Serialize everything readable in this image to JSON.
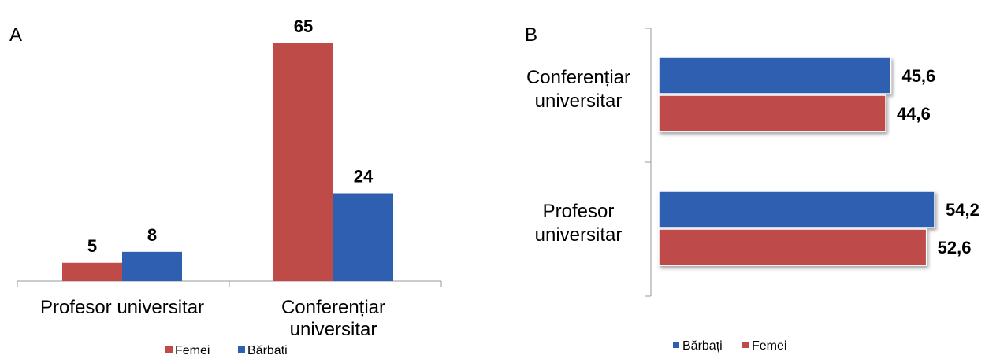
{
  "chart_data": [
    {
      "panel": "A",
      "type": "bar",
      "orientation": "vertical",
      "categories": [
        "Profesor universitar",
        "Conferențiar universitar"
      ],
      "series": [
        {
          "name": "Femei",
          "values": [
            5,
            65
          ],
          "value_labels": [
            "5",
            "65"
          ],
          "color": "#BE4B48"
        },
        {
          "name": "Bărbati",
          "values": [
            8,
            24
          ],
          "value_labels": [
            "8",
            "24"
          ],
          "color": "#2E5FB0"
        }
      ],
      "ylim": [
        0,
        65
      ],
      "legend": "bottom"
    },
    {
      "panel": "B",
      "type": "bar",
      "orientation": "horizontal",
      "categories": [
        "Conferențiar universitar",
        "Profesor universitar"
      ],
      "series": [
        {
          "name": "Bărbați",
          "values": [
            45.6,
            54.2
          ],
          "value_labels": [
            "45,6",
            "54,2"
          ],
          "color": "#2E5FB0"
        },
        {
          "name": "Femei",
          "values": [
            44.6,
            52.6
          ],
          "value_labels": [
            "44,6",
            "52,6"
          ],
          "color": "#BE4B48"
        }
      ],
      "xlim": [
        0,
        54.2
      ],
      "legend": "bottom"
    }
  ]
}
